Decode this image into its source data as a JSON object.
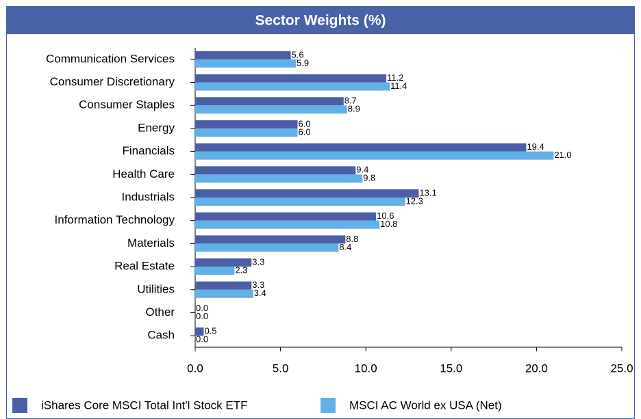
{
  "chart_data": {
    "type": "bar",
    "orientation": "horizontal",
    "title": "Sector Weights (%)",
    "categories": [
      "Communication Services",
      "Consumer Discretionary",
      "Consumer Staples",
      "Energy",
      "Financials",
      "Health Care",
      "Industrials",
      "Information Technology",
      "Materials",
      "Real Estate",
      "Utilities",
      "Other",
      "Cash"
    ],
    "series": [
      {
        "name": "iShares Core MSCI Total Int'l Stock ETF",
        "color": "#4a5fa5",
        "values": [
          5.6,
          11.2,
          8.7,
          6.0,
          19.4,
          9.4,
          13.1,
          10.6,
          8.8,
          3.3,
          3.3,
          0.0,
          0.5
        ],
        "value_labels": [
          "5.6",
          "11.2",
          "8.7",
          "6.0",
          "19.4",
          "9.4",
          "13.1",
          "10.6",
          "8.8",
          "3.3",
          "3.3",
          "0.0",
          "0.5"
        ]
      },
      {
        "name": "MSCI AC World ex USA (Net)",
        "color": "#62b0e8",
        "values": [
          5.9,
          11.4,
          8.9,
          6.0,
          21.0,
          9.8,
          12.3,
          10.8,
          8.4,
          2.3,
          3.4,
          0.0,
          0.0
        ],
        "value_labels": [
          "5.9",
          "11.4",
          "8.9",
          "6.0",
          "21.0",
          "9.8",
          "12.3",
          "10.8",
          "8.4",
          "2.3",
          "3.4",
          "0.0",
          "0.0"
        ]
      }
    ],
    "xlim": [
      0,
      25
    ],
    "xticks": [
      {
        "value": 0,
        "label": "0.0"
      },
      {
        "value": 5,
        "label": "5.0"
      },
      {
        "value": 10,
        "label": "10.0"
      },
      {
        "value": 15,
        "label": "15.0"
      },
      {
        "value": 20,
        "label": "20.0"
      },
      {
        "value": 25,
        "label": "25.0"
      }
    ],
    "legend": "bottom"
  }
}
